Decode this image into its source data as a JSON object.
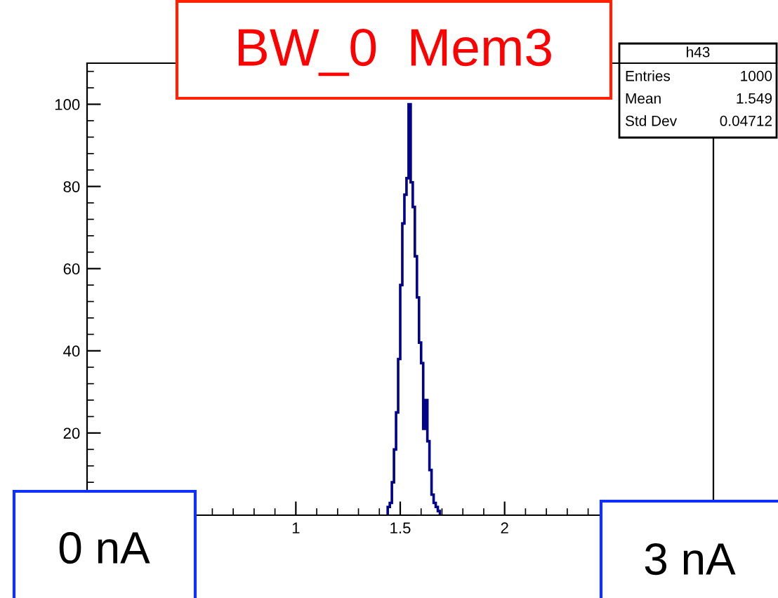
{
  "chart_data": {
    "type": "histogram",
    "title": "BW_0  Mem3",
    "bins": [
      1.44,
      1.45,
      1.46,
      1.47,
      1.48,
      1.49,
      1.5,
      1.51,
      1.52,
      1.53,
      1.54,
      1.55,
      1.56,
      1.57,
      1.58,
      1.59,
      1.6,
      1.61,
      1.62,
      1.63,
      1.64,
      1.65,
      1.66,
      1.67,
      1.68,
      1.69
    ],
    "values": [
      2,
      3,
      8,
      16,
      25,
      38,
      56,
      71,
      78,
      82,
      100,
      81,
      75,
      63,
      53,
      42,
      37,
      21,
      28,
      18,
      11,
      5,
      3,
      2,
      1
    ],
    "color": "#00008b",
    "xlim": [
      0,
      3
    ],
    "xticks": [
      {
        "value": 0.5,
        "label": null
      },
      1,
      1.5,
      2,
      {
        "value": 2.5,
        "label": null
      }
    ],
    "ylim": [
      0,
      110
    ],
    "yticks": [
      20,
      40,
      60,
      80,
      100
    ],
    "grid": false,
    "annotations": [
      "h43",
      "Entries",
      "1000",
      "Mean",
      "1.549",
      "Std Dev",
      "0.04712",
      "0 nA",
      "3 nA"
    ]
  }
}
